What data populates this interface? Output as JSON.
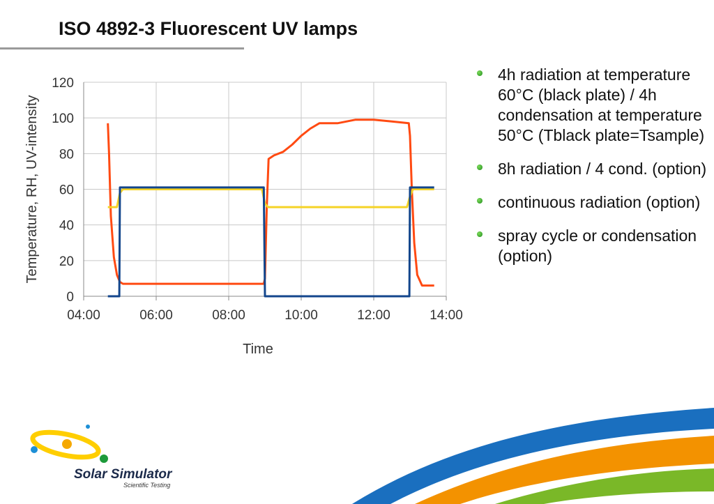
{
  "slide": {
    "title": "ISO 4892-3 Fluorescent UV lamps"
  },
  "bullets": [
    "4h radiation at temperature 60°C (black plate) / 4h condensation at temperature 50°C (Tblack plate=Tsample)",
    "8h radiation / 4 cond. (option)",
    "continuous radiation (option)",
    "spray cycle or condensation (option)"
  ],
  "logo": {
    "name": "Solar Simulator",
    "tagline": "Scientific Testing"
  },
  "chart_data": {
    "type": "line",
    "title": "",
    "xlabel": "Time",
    "ylabel": "Temperature, RH, UV-intensity",
    "xlim": [
      "04:00",
      "14:00"
    ],
    "ylim": [
      0,
      120
    ],
    "x_ticks": [
      "04:00",
      "06:00",
      "08:00",
      "10:00",
      "12:00",
      "14:00"
    ],
    "y_ticks": [
      0,
      20,
      40,
      60,
      80,
      100,
      120
    ],
    "grid": true,
    "legend": "none",
    "series": [
      {
        "color": "#ff4a12",
        "points": [
          [
            "04:40",
            97
          ],
          [
            "04:42",
            80
          ],
          [
            "04:45",
            45
          ],
          [
            "04:50",
            22
          ],
          [
            "04:55",
            12
          ],
          [
            "05:00",
            8
          ],
          [
            "05:05",
            7
          ],
          [
            "06:00",
            7
          ],
          [
            "07:00",
            7
          ],
          [
            "08:00",
            7
          ],
          [
            "08:58",
            7
          ],
          [
            "09:00",
            10
          ],
          [
            "09:03",
            50
          ],
          [
            "09:06",
            77
          ],
          [
            "09:15",
            79
          ],
          [
            "09:30",
            81
          ],
          [
            "09:45",
            85
          ],
          [
            "10:00",
            90
          ],
          [
            "10:15",
            94
          ],
          [
            "10:30",
            97
          ],
          [
            "11:00",
            97
          ],
          [
            "11:30",
            99
          ],
          [
            "12:00",
            99
          ],
          [
            "12:30",
            98
          ],
          [
            "12:58",
            97
          ],
          [
            "13:00",
            90
          ],
          [
            "13:03",
            60
          ],
          [
            "13:07",
            30
          ],
          [
            "13:12",
            12
          ],
          [
            "13:20",
            6
          ],
          [
            "13:40",
            6
          ]
        ]
      },
      {
        "color": "#f5d327",
        "points": [
          [
            "04:40",
            50
          ],
          [
            "04:55",
            50
          ],
          [
            "05:00",
            58
          ],
          [
            "05:05",
            60
          ],
          [
            "06:00",
            60
          ],
          [
            "07:00",
            60
          ],
          [
            "08:00",
            60
          ],
          [
            "08:55",
            60
          ],
          [
            "09:00",
            52
          ],
          [
            "09:05",
            50
          ],
          [
            "10:00",
            50
          ],
          [
            "11:00",
            50
          ],
          [
            "12:00",
            50
          ],
          [
            "12:55",
            50
          ],
          [
            "13:00",
            56
          ],
          [
            "13:05",
            60
          ],
          [
            "13:40",
            60
          ]
        ]
      },
      {
        "color": "#13468c",
        "points": [
          [
            "04:40",
            0
          ],
          [
            "04:59",
            0
          ],
          [
            "05:00",
            61
          ],
          [
            "06:00",
            61
          ],
          [
            "07:00",
            61
          ],
          [
            "08:00",
            61
          ],
          [
            "08:58",
            61
          ],
          [
            "09:00",
            0
          ],
          [
            "10:00",
            0
          ],
          [
            "11:00",
            0
          ],
          [
            "12:00",
            0
          ],
          [
            "12:59",
            0
          ],
          [
            "13:00",
            61
          ],
          [
            "13:40",
            61
          ]
        ]
      }
    ]
  },
  "colors": {
    "logo_ring": "#ffce00",
    "logo_sun": "#f5a800",
    "logo_dot_blue": "#1d8fd6",
    "logo_dot_green": "#1d9a3a",
    "swoosh_blue": "#1a6fbf",
    "swoosh_orange": "#f39200",
    "swoosh_green": "#7ab828"
  }
}
